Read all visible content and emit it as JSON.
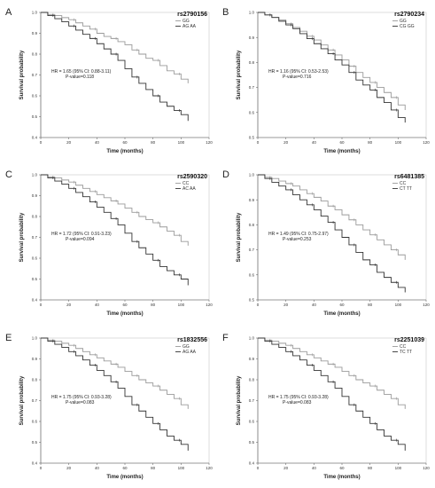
{
  "chart_data": [
    {
      "type": "line",
      "letter": "A",
      "snp": "rs2790156",
      "xlabel": "Time (months)",
      "ylabel": "Survival probability",
      "xlim": [
        0,
        120
      ],
      "ylim": [
        0.4,
        1.0
      ],
      "xticks": [
        "0",
        "20",
        "40",
        "60",
        "80",
        "100",
        "120"
      ],
      "yticks": [
        "1.0",
        "0.9",
        "0.8",
        "0.7",
        "0.6",
        "0.5",
        "0.4"
      ],
      "hr": "HR = 1.65 (95% CI: 0.88-3.11)",
      "pvalue": "P-value=0.118",
      "series": [
        {
          "name": "GG",
          "color": "#9a9a9a",
          "x": [
            0,
            5,
            10,
            15,
            20,
            25,
            30,
            35,
            40,
            45,
            50,
            55,
            60,
            65,
            70,
            75,
            80,
            85,
            90,
            95,
            100,
            105
          ],
          "y": [
            1.0,
            0.99,
            0.985,
            0.975,
            0.965,
            0.95,
            0.935,
            0.92,
            0.9,
            0.885,
            0.875,
            0.86,
            0.845,
            0.82,
            0.8,
            0.78,
            0.77,
            0.745,
            0.72,
            0.705,
            0.68,
            0.66
          ]
        },
        {
          "name": "AG AA",
          "color": "#333333",
          "x": [
            0,
            5,
            10,
            15,
            20,
            25,
            30,
            35,
            40,
            45,
            50,
            55,
            60,
            65,
            70,
            75,
            80,
            85,
            90,
            95,
            100,
            105
          ],
          "y": [
            1.0,
            0.985,
            0.97,
            0.955,
            0.935,
            0.915,
            0.895,
            0.875,
            0.85,
            0.825,
            0.8,
            0.77,
            0.73,
            0.69,
            0.66,
            0.63,
            0.6,
            0.57,
            0.55,
            0.53,
            0.51,
            0.48
          ]
        }
      ]
    },
    {
      "type": "line",
      "letter": "B",
      "snp": "rs2790234",
      "xlabel": "Time (months)",
      "ylabel": "Survival probability",
      "xlim": [
        0,
        120
      ],
      "ylim": [
        0.5,
        1.0
      ],
      "xticks": [
        "0",
        "20",
        "40",
        "60",
        "80",
        "100",
        "120"
      ],
      "yticks": [
        "1.0",
        "0.9",
        "0.8",
        "0.7",
        "0.6",
        "0.5"
      ],
      "hr": "HR = 1.16 (95% CI: 0.53-2.53)",
      "pvalue": "P-value=0.716",
      "series": [
        {
          "name": "GG",
          "color": "#9a9a9a",
          "x": [
            0,
            5,
            10,
            15,
            20,
            25,
            30,
            35,
            40,
            45,
            50,
            55,
            60,
            65,
            70,
            75,
            80,
            85,
            90,
            95,
            100,
            105
          ],
          "y": [
            1.0,
            0.99,
            0.98,
            0.97,
            0.955,
            0.94,
            0.925,
            0.905,
            0.89,
            0.87,
            0.85,
            0.83,
            0.81,
            0.785,
            0.76,
            0.74,
            0.72,
            0.7,
            0.68,
            0.66,
            0.63,
            0.61
          ]
        },
        {
          "name": "CG GG",
          "color": "#333333",
          "x": [
            0,
            5,
            10,
            15,
            20,
            25,
            30,
            35,
            40,
            45,
            50,
            55,
            60,
            65,
            70,
            75,
            80,
            85,
            90,
            95,
            100,
            105
          ],
          "y": [
            1.0,
            0.99,
            0.98,
            0.965,
            0.95,
            0.935,
            0.915,
            0.895,
            0.875,
            0.855,
            0.835,
            0.81,
            0.79,
            0.76,
            0.73,
            0.71,
            0.69,
            0.66,
            0.64,
            0.61,
            0.58,
            0.56
          ]
        }
      ]
    },
    {
      "type": "line",
      "letter": "C",
      "snp": "rs2590320",
      "xlabel": "Time (months)",
      "ylabel": "Survival probability",
      "xlim": [
        0,
        120
      ],
      "ylim": [
        0.4,
        1.0
      ],
      "xticks": [
        "0",
        "20",
        "40",
        "60",
        "80",
        "100",
        "120"
      ],
      "yticks": [
        "1.0",
        "0.9",
        "0.8",
        "0.7",
        "0.6",
        "0.5",
        "0.4"
      ],
      "hr": "HR = 1.72 (95% CI: 0.91-3.23)",
      "pvalue": "P-value=0.094",
      "series": [
        {
          "name": "CC",
          "color": "#9a9a9a",
          "x": [
            0,
            5,
            10,
            15,
            20,
            25,
            30,
            35,
            40,
            45,
            50,
            55,
            60,
            65,
            70,
            75,
            80,
            85,
            90,
            95,
            100,
            105
          ],
          "y": [
            1.0,
            0.99,
            0.985,
            0.975,
            0.965,
            0.95,
            0.935,
            0.92,
            0.905,
            0.89,
            0.875,
            0.86,
            0.84,
            0.82,
            0.8,
            0.785,
            0.77,
            0.75,
            0.73,
            0.71,
            0.68,
            0.66
          ]
        },
        {
          "name": "AC AA",
          "color": "#333333",
          "x": [
            0,
            5,
            10,
            15,
            20,
            25,
            30,
            35,
            40,
            45,
            50,
            55,
            60,
            65,
            70,
            75,
            80,
            85,
            90,
            95,
            100,
            105
          ],
          "y": [
            1.0,
            0.985,
            0.97,
            0.955,
            0.935,
            0.915,
            0.895,
            0.87,
            0.845,
            0.82,
            0.79,
            0.76,
            0.72,
            0.68,
            0.65,
            0.62,
            0.59,
            0.56,
            0.54,
            0.52,
            0.5,
            0.47
          ]
        }
      ]
    },
    {
      "type": "line",
      "letter": "D",
      "snp": "rs6481385",
      "xlabel": "Time (months)",
      "ylabel": "Survival probability",
      "xlim": [
        0,
        120
      ],
      "ylim": [
        0.5,
        1.0
      ],
      "xticks": [
        "0",
        "20",
        "40",
        "60",
        "80",
        "100",
        "120"
      ],
      "yticks": [
        "1.0",
        "0.9",
        "0.8",
        "0.7",
        "0.6",
        "0.5"
      ],
      "hr": "HR = 1.49 (95% CI: 0.75-2.97)",
      "pvalue": "P-value=0.253",
      "series": [
        {
          "name": "CC",
          "color": "#9a9a9a",
          "x": [
            0,
            5,
            10,
            15,
            20,
            25,
            30,
            35,
            40,
            45,
            50,
            55,
            60,
            65,
            70,
            75,
            80,
            85,
            90,
            95,
            100,
            105
          ],
          "y": [
            1.0,
            0.99,
            0.985,
            0.975,
            0.965,
            0.955,
            0.94,
            0.925,
            0.91,
            0.895,
            0.875,
            0.86,
            0.84,
            0.82,
            0.8,
            0.78,
            0.76,
            0.74,
            0.72,
            0.7,
            0.68,
            0.66
          ]
        },
        {
          "name": "CT TT",
          "color": "#333333",
          "x": [
            0,
            5,
            10,
            15,
            20,
            25,
            30,
            35,
            40,
            45,
            50,
            55,
            60,
            65,
            70,
            75,
            80,
            85,
            90,
            95,
            100,
            105
          ],
          "y": [
            1.0,
            0.985,
            0.97,
            0.955,
            0.94,
            0.92,
            0.9,
            0.88,
            0.86,
            0.835,
            0.81,
            0.78,
            0.75,
            0.72,
            0.69,
            0.66,
            0.64,
            0.61,
            0.59,
            0.57,
            0.55,
            0.53
          ]
        }
      ]
    },
    {
      "type": "line",
      "letter": "E",
      "snp": "rs1832556",
      "xlabel": "Time (months)",
      "ylabel": "Survival probability",
      "xlim": [
        0,
        120
      ],
      "ylim": [
        0.4,
        1.0
      ],
      "xticks": [
        "0",
        "20",
        "40",
        "60",
        "80",
        "100",
        "120"
      ],
      "yticks": [
        "1.0",
        "0.9",
        "0.8",
        "0.7",
        "0.6",
        "0.5",
        "0.4"
      ],
      "hr": "HR = 1.75 (95% CI: 0.93-3.28)",
      "pvalue": "P-value=0.083",
      "series": [
        {
          "name": "GG",
          "color": "#9a9a9a",
          "x": [
            0,
            5,
            10,
            15,
            20,
            25,
            30,
            35,
            40,
            45,
            50,
            55,
            60,
            65,
            70,
            75,
            80,
            85,
            90,
            95,
            100,
            105
          ],
          "y": [
            1.0,
            0.99,
            0.985,
            0.975,
            0.965,
            0.95,
            0.935,
            0.92,
            0.905,
            0.89,
            0.875,
            0.86,
            0.84,
            0.82,
            0.8,
            0.785,
            0.77,
            0.75,
            0.73,
            0.71,
            0.68,
            0.66
          ]
        },
        {
          "name": "AG AA",
          "color": "#333333",
          "x": [
            0,
            5,
            10,
            15,
            20,
            25,
            30,
            35,
            40,
            45,
            50,
            55,
            60,
            65,
            70,
            75,
            80,
            85,
            90,
            95,
            100,
            105
          ],
          "y": [
            1.0,
            0.985,
            0.97,
            0.955,
            0.935,
            0.915,
            0.895,
            0.87,
            0.845,
            0.82,
            0.79,
            0.76,
            0.72,
            0.68,
            0.65,
            0.62,
            0.59,
            0.56,
            0.53,
            0.51,
            0.49,
            0.46
          ]
        }
      ]
    },
    {
      "type": "line",
      "letter": "F",
      "snp": "rs2251039",
      "xlabel": "Time (months)",
      "ylabel": "Survival probability",
      "xlim": [
        0,
        120
      ],
      "ylim": [
        0.4,
        1.0
      ],
      "xticks": [
        "0",
        "20",
        "40",
        "60",
        "80",
        "100",
        "120"
      ],
      "yticks": [
        "1.0",
        "0.9",
        "0.8",
        "0.7",
        "0.6",
        "0.5",
        "0.4"
      ],
      "hr": "HR = 1.75 (95% CI: 0.93-3.28)",
      "pvalue": "P-value=0.083",
      "series": [
        {
          "name": "CC",
          "color": "#9a9a9a",
          "x": [
            0,
            5,
            10,
            15,
            20,
            25,
            30,
            35,
            40,
            45,
            50,
            55,
            60,
            65,
            70,
            75,
            80,
            85,
            90,
            95,
            100,
            105
          ],
          "y": [
            1.0,
            0.99,
            0.985,
            0.975,
            0.965,
            0.95,
            0.935,
            0.92,
            0.905,
            0.89,
            0.875,
            0.86,
            0.84,
            0.82,
            0.8,
            0.785,
            0.77,
            0.75,
            0.73,
            0.71,
            0.68,
            0.66
          ]
        },
        {
          "name": "TC TT",
          "color": "#333333",
          "x": [
            0,
            5,
            10,
            15,
            20,
            25,
            30,
            35,
            40,
            45,
            50,
            55,
            60,
            65,
            70,
            75,
            80,
            85,
            90,
            95,
            100,
            105
          ],
          "y": [
            1.0,
            0.985,
            0.97,
            0.955,
            0.935,
            0.915,
            0.895,
            0.87,
            0.845,
            0.82,
            0.79,
            0.76,
            0.72,
            0.68,
            0.65,
            0.62,
            0.59,
            0.56,
            0.53,
            0.51,
            0.49,
            0.46
          ]
        }
      ]
    }
  ]
}
